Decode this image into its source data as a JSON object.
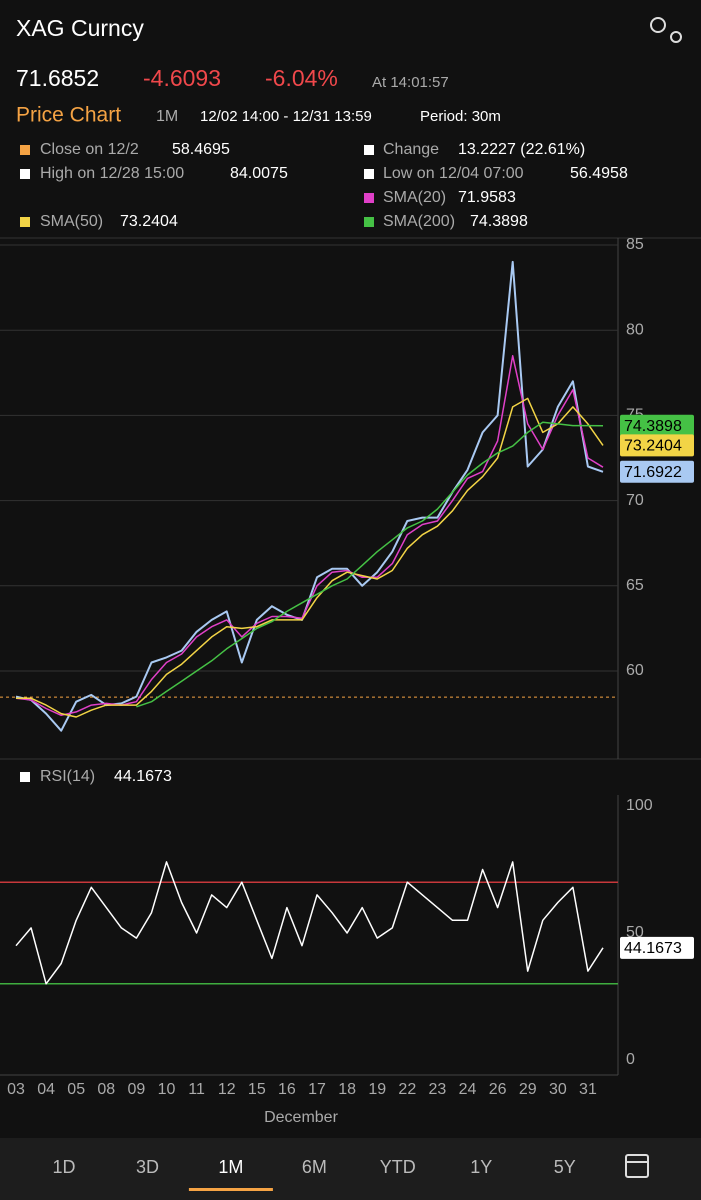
{
  "header": {
    "title": "XAG Curncy",
    "last": "71.6852",
    "change": "-4.6093",
    "change_pct": "-6.04%",
    "time": "At 14:01:57"
  },
  "subheader": {
    "title": "Price Chart",
    "range": "1M",
    "dates": "12/02 14:00 - 12/31 13:59",
    "period": "Period: 30m"
  },
  "info": {
    "close_label": "Close on 12/2",
    "change_label": "Change",
    "change_value": "13.2227 (22.61%)",
    "high_label": "High on 12/28 15:00",
    "low_label": "Low on 12/04 07:00"
  },
  "chart_data": [
    {
      "type": "line",
      "categories": [
        "03",
        null,
        "04",
        null,
        "05",
        null,
        "08",
        null,
        "09",
        null,
        "10",
        null,
        "11",
        null,
        "12",
        null,
        "15",
        null,
        "16",
        null,
        "17",
        null,
        "18",
        null,
        "19",
        null,
        "22",
        null,
        "23",
        null,
        "24",
        null,
        "26",
        null,
        "29",
        null,
        "30",
        null,
        "31",
        null
      ],
      "xlabel": "December",
      "reference_line": 58.4695,
      "series": [
        {
          "color": "#a9c9f2",
          "values": [
            58.5,
            58.3,
            57.5,
            56.4958,
            58.2,
            58.6,
            58.0,
            58.1,
            58.5,
            60.5,
            60.8,
            61.2,
            62.3,
            63.0,
            63.5,
            60.5,
            63.0,
            63.8,
            63.3,
            63.0,
            65.5,
            66.0,
            66.0,
            65.0,
            65.8,
            67.0,
            68.8,
            69.0,
            69.0,
            70.5,
            71.8,
            74.0,
            75.0,
            84.0075,
            72.0,
            73.0,
            75.5,
            77.0,
            72.0,
            71.6922
          ]
        },
        {
          "name": "SMA(20)",
          "color": "#e040c8",
          "values": [
            58.4,
            58.3,
            57.8,
            57.4,
            57.6,
            58.0,
            58.1,
            58.0,
            58.2,
            59.5,
            60.5,
            61.0,
            62.0,
            62.6,
            63.0,
            62.0,
            62.8,
            63.2,
            63.2,
            63.1,
            65.0,
            65.8,
            65.9,
            65.5,
            65.5,
            66.3,
            68.0,
            68.6,
            68.8,
            70.0,
            71.3,
            71.7,
            73.5,
            78.5,
            74.5,
            73.0,
            75.0,
            76.5,
            72.5,
            71.9583
          ]
        },
        {
          "name": "SMA(50)",
          "color": "#f2d446",
          "values": [
            58.4,
            58.4,
            58.0,
            57.5,
            57.3,
            57.7,
            58.0,
            58.0,
            58.0,
            58.8,
            59.8,
            60.4,
            61.2,
            62.0,
            62.6,
            62.5,
            62.6,
            63.0,
            63.0,
            63.0,
            64.3,
            65.3,
            65.8,
            65.6,
            65.4,
            65.9,
            67.2,
            68.0,
            68.5,
            69.4,
            70.6,
            71.4,
            72.5,
            75.5,
            76.0,
            74.0,
            74.5,
            75.5,
            74.5,
            73.2404
          ]
        },
        {
          "name": "SMA(200)",
          "color": "#45c145",
          "values": [
            null,
            null,
            null,
            null,
            null,
            null,
            null,
            null,
            57.9,
            58.2,
            58.8,
            59.4,
            60.0,
            60.6,
            61.3,
            61.9,
            62.5,
            62.9,
            63.5,
            64.0,
            64.5,
            65.0,
            65.4,
            66.2,
            67.0,
            67.7,
            68.4,
            68.8,
            69.5,
            70.5,
            71.5,
            72.2,
            72.8,
            73.2,
            74.0,
            74.6,
            74.5,
            74.4,
            74.4,
            74.3898
          ]
        }
      ],
      "ylim": [
        55,
        85
      ],
      "yticks": [
        60,
        65,
        70,
        75,
        80,
        85
      ],
      "grid": true
    },
    {
      "type": "line",
      "series": [
        {
          "name": "RSI(14)",
          "color": "#ffffff",
          "values": [
            45,
            52,
            30,
            38,
            55,
            68,
            60,
            52,
            48,
            58,
            78,
            62,
            50,
            65,
            60,
            70,
            55,
            40,
            60,
            45,
            65,
            58,
            50,
            60,
            48,
            52,
            70,
            65,
            60,
            55,
            55,
            75,
            60,
            78,
            35,
            55,
            62,
            68,
            35,
            44.1673
          ]
        }
      ],
      "hlines": [
        {
          "value": 70,
          "color": "#c8383b"
        },
        {
          "value": 30,
          "color": "#3fae3f"
        }
      ],
      "ylim": [
        0,
        100
      ],
      "yticks": [
        0,
        50,
        100
      ]
    }
  ],
  "tabs": [
    "1D",
    "3D",
    "1M",
    "6M",
    "YTD",
    "1Y",
    "5Y"
  ]
}
